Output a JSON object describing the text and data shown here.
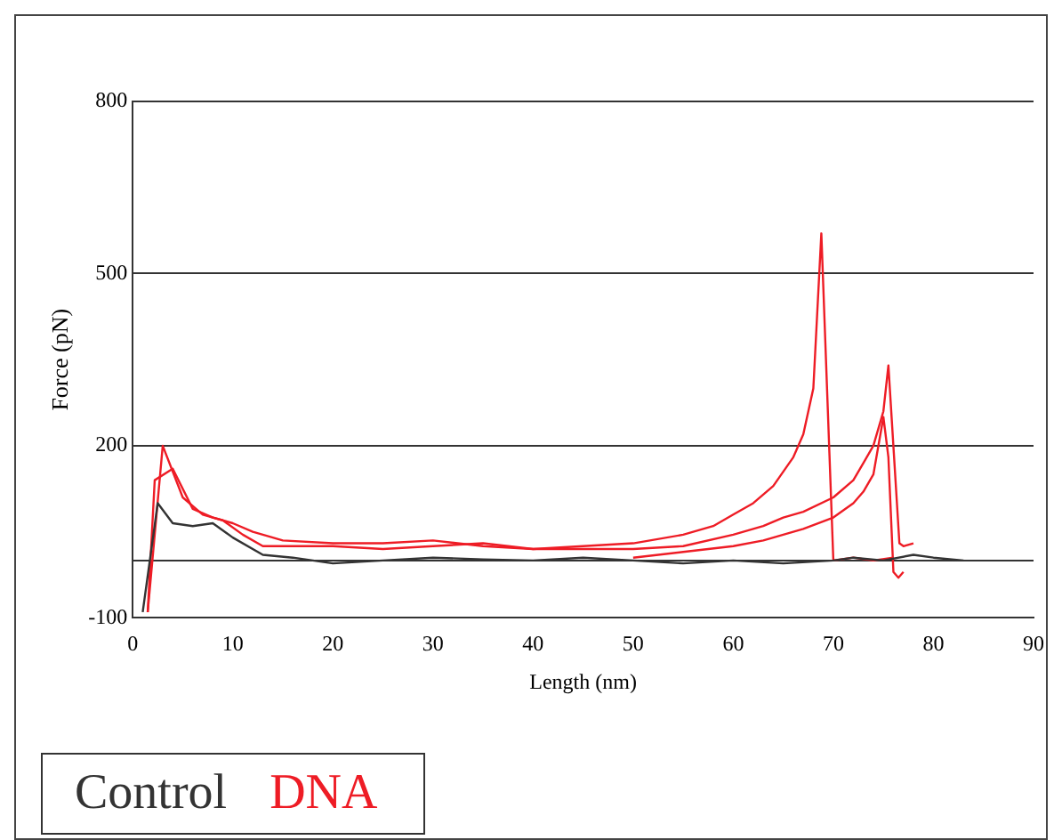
{
  "chart_data": {
    "type": "line",
    "xlabel": "Length (nm)",
    "ylabel": "Force (pN)",
    "xlim": [
      0,
      90
    ],
    "xticks": [
      0,
      10,
      20,
      30,
      40,
      50,
      60,
      70,
      80,
      90
    ],
    "ylim": [
      -100,
      800
    ],
    "yticks": [
      -100,
      200,
      500,
      800
    ],
    "grid": "y",
    "legend": "bottom left",
    "marker": "none",
    "line_style": "solid",
    "ref_lines": [
      {
        "axis": "y",
        "value": 0
      }
    ],
    "series": [
      {
        "name": "Control",
        "color": "#333333",
        "x": [
          1,
          2.5,
          4,
          6,
          8,
          10,
          13,
          16,
          20,
          25,
          30,
          35,
          40,
          45,
          50,
          55,
          60,
          65,
          70,
          72,
          75,
          78,
          80,
          83
        ],
        "values": [
          -90,
          100,
          65,
          60,
          65,
          40,
          10,
          5,
          -5,
          0,
          5,
          2,
          0,
          5,
          0,
          -5,
          0,
          -5,
          0,
          5,
          0,
          10,
          5,
          0
        ]
      },
      {
        "name": "DNA",
        "color": "#ee1c25",
        "x": [
          1.5,
          3,
          5,
          7,
          9,
          11,
          13,
          15,
          20,
          25,
          30,
          35,
          40,
          45,
          50,
          55,
          58,
          60,
          62,
          64,
          66,
          67,
          68,
          68.8,
          70,
          72,
          74,
          76
        ],
        "values": [
          -90,
          200,
          110,
          80,
          70,
          45,
          25,
          25,
          25,
          20,
          25,
          30,
          20,
          25,
          30,
          45,
          60,
          80,
          100,
          130,
          180,
          220,
          300,
          570,
          0,
          5,
          0,
          5
        ]
      },
      {
        "color": "#ee1c25",
        "x": [
          1.5,
          2.2,
          4,
          6,
          8,
          10,
          12,
          15,
          20,
          25,
          30,
          35,
          40,
          45,
          50,
          55,
          60,
          63,
          65,
          67,
          70,
          72,
          73,
          74,
          75,
          75.5,
          76.6,
          77,
          78
        ],
        "values": [
          -90,
          140,
          160,
          90,
          75,
          65,
          50,
          35,
          30,
          30,
          35,
          25,
          20,
          20,
          20,
          25,
          45,
          60,
          75,
          85,
          110,
          140,
          170,
          200,
          260,
          340,
          30,
          25,
          30
        ]
      },
      {
        "color": "#ee1c25",
        "x": [
          50,
          55,
          60,
          63,
          65,
          67,
          70,
          72,
          73,
          74,
          74.5,
          75,
          75.5,
          76,
          76.5,
          77
        ],
        "values": [
          5,
          15,
          25,
          35,
          45,
          55,
          75,
          100,
          120,
          150,
          200,
          250,
          180,
          -20,
          -30,
          -20
        ]
      }
    ]
  }
}
